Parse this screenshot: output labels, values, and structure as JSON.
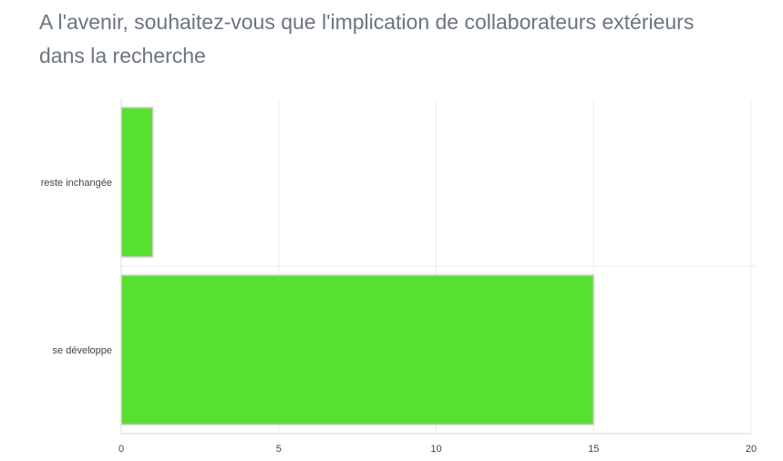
{
  "chart_data": {
    "type": "bar",
    "orientation": "horizontal",
    "title": "A l'avenir, souhaitez-vous que l'implication de collaborateurs extérieurs dans la recherche",
    "categories": [
      "reste inchangée",
      "se développe"
    ],
    "values": [
      1,
      15
    ],
    "xlim": [
      0,
      20
    ],
    "xticks": [
      0,
      5,
      10,
      15,
      20
    ],
    "xlabel": "",
    "ylabel": "",
    "grid": true,
    "legend": "none",
    "bar_color": "#57e02f",
    "bar_border_color": "#cfcfcf"
  }
}
